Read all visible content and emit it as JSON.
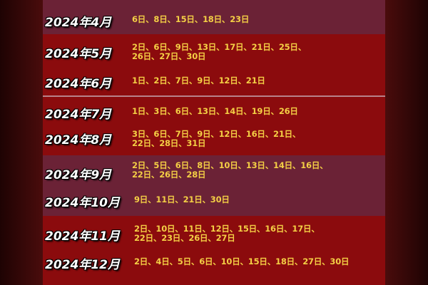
{
  "rows": [
    {
      "month": "2024年4月",
      "dates": "6日、8日、15日、18日、23日"
    },
    {
      "month": "2024年5月",
      "dates": "2日、6日、9日、13日、17日、21日、25日、\n26日、27日、30日"
    },
    {
      "month": "2024年6月",
      "dates": "1日、2日、7日、9日、12日、21日"
    },
    {
      "month": "2024年7月",
      "dates": "1日、3日、6日、13日、14日、19日、26日"
    },
    {
      "month": "2024年8月",
      "dates": "3日、6日、7日、9日、12日、16日、21日、\n22日、28日、31日"
    },
    {
      "month": "2024年9月",
      "dates": "2日、5日、6日、8日、10日、13日、14日、16日、\n22日、26日、28日"
    },
    {
      "month": "2024年10月",
      "dates": "9日、11日、21日、30日"
    },
    {
      "month": "2024年11月",
      "dates": "2日、10日、11日、12日、15日、16日、17日、\n22日、23日、26日、27日"
    },
    {
      "month": "2024年12月",
      "dates": "2日、4日、5日、6日、10日、15日、18日、27日、30日"
    }
  ],
  "colors": {
    "purple_band": "#6b2236",
    "red_band": "#8b0b0d",
    "date_text": "#f4cf45",
    "month_text": "#ffffff"
  }
}
